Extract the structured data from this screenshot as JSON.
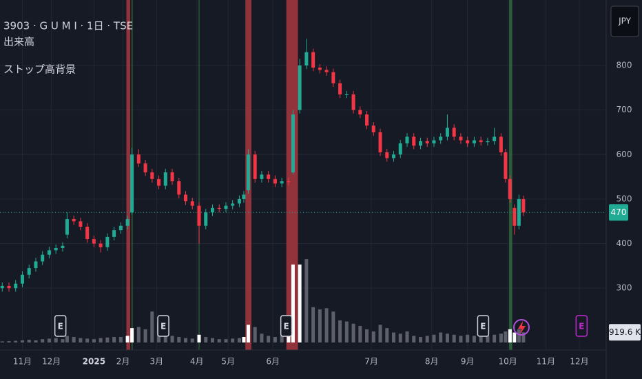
{
  "chart_data": {
    "type": "candlestick",
    "title": "3903 · G U M I · 1日 · TSE",
    "indicators": [
      "出来高",
      "ストップ高背景"
    ],
    "currency": "JPY",
    "x": [
      0,
      3,
      6,
      9,
      12,
      15,
      18,
      21,
      24,
      27,
      29,
      32,
      35,
      38,
      41,
      44,
      47,
      50,
      53,
      56,
      58,
      61,
      64,
      67,
      70,
      73,
      76,
      79,
      82,
      85,
      88,
      91,
      94,
      97,
      100,
      103,
      106,
      108,
      110,
      113,
      116,
      119,
      122,
      125,
      128,
      130,
      133,
      136,
      139,
      142,
      145,
      148,
      151,
      154,
      157,
      160,
      163,
      166,
      169,
      172,
      175,
      178,
      181,
      184,
      187,
      190,
      193,
      196,
      199,
      202,
      205,
      208,
      211,
      214,
      217,
      220,
      223,
      225,
      227,
      229,
      231,
      233
    ],
    "open": [
      300,
      305,
      300,
      310,
      330,
      345,
      360,
      375,
      385,
      390,
      420,
      455,
      450,
      438,
      410,
      400,
      392,
      415,
      430,
      440,
      470,
      600,
      580,
      560,
      545,
      530,
      560,
      540,
      510,
      495,
      485,
      440,
      470,
      480,
      478,
      485,
      490,
      500,
      520,
      600,
      545,
      555,
      545,
      535,
      540,
      560,
      700,
      800,
      830,
      795,
      790,
      785,
      760,
      735,
      735,
      700,
      690,
      665,
      650,
      605,
      592,
      600,
      625,
      640,
      620,
      630,
      625,
      632,
      640,
      660,
      640,
      632,
      625,
      632,
      628,
      630,
      640,
      605,
      545,
      480,
      440,
      500
    ],
    "high": [
      313,
      313,
      318,
      338,
      353,
      368,
      383,
      393,
      398,
      403,
      470,
      463,
      458,
      446,
      418,
      408,
      423,
      438,
      448,
      463,
      615,
      612,
      588,
      568,
      553,
      568,
      568,
      548,
      518,
      503,
      493,
      478,
      488,
      488,
      493,
      498,
      508,
      518,
      612,
      608,
      563,
      563,
      553,
      548,
      548,
      700,
      815,
      860,
      838,
      803,
      798,
      793,
      768,
      743,
      743,
      708,
      698,
      673,
      658,
      613,
      608,
      633,
      648,
      648,
      638,
      638,
      640,
      648,
      690,
      668,
      648,
      640,
      640,
      640,
      638,
      660,
      648,
      613,
      553,
      488,
      510,
      508
    ],
    "low": [
      292,
      292,
      292,
      302,
      322,
      337,
      352,
      367,
      377,
      382,
      412,
      442,
      430,
      402,
      392,
      380,
      384,
      407,
      422,
      432,
      465,
      572,
      552,
      537,
      522,
      522,
      532,
      502,
      487,
      477,
      400,
      432,
      462,
      470,
      470,
      477,
      482,
      492,
      512,
      537,
      537,
      537,
      527,
      527,
      530,
      555,
      692,
      792,
      787,
      782,
      777,
      752,
      727,
      727,
      692,
      682,
      657,
      642,
      597,
      584,
      584,
      592,
      617,
      612,
      612,
      617,
      617,
      624,
      632,
      632,
      624,
      617,
      617,
      620,
      620,
      622,
      597,
      537,
      492,
      420,
      432,
      462
    ],
    "close": [
      305,
      300,
      310,
      330,
      345,
      360,
      375,
      385,
      390,
      395,
      455,
      450,
      438,
      410,
      400,
      392,
      415,
      430,
      440,
      455,
      600,
      580,
      560,
      545,
      530,
      560,
      540,
      510,
      495,
      485,
      440,
      470,
      480,
      478,
      485,
      490,
      500,
      510,
      600,
      545,
      555,
      545,
      535,
      540,
      538,
      690,
      800,
      830,
      795,
      790,
      785,
      760,
      735,
      735,
      700,
      690,
      665,
      650,
      605,
      592,
      600,
      625,
      640,
      620,
      630,
      625,
      632,
      640,
      660,
      640,
      632,
      625,
      632,
      628,
      630,
      640,
      605,
      545,
      500,
      440,
      500,
      470
    ],
    "volume": [
      100,
      120,
      150,
      200,
      250,
      200,
      300,
      350,
      400,
      300,
      600,
      500,
      400,
      350,
      300,
      400,
      450,
      500,
      500,
      600,
      1300,
      1400,
      1200,
      2800,
      1800,
      900,
      600,
      500,
      400,
      350,
      700,
      500,
      400,
      300,
      300,
      350,
      400,
      500,
      1600,
      1400,
      800,
      600,
      500,
      600,
      700,
      7060,
      7060,
      7540,
      3200,
      3000,
      3100,
      2800,
      2000,
      1900,
      1700,
      1500,
      1200,
      1000,
      1600,
      1300,
      900,
      800,
      1000,
      600,
      500,
      600,
      700,
      900,
      800,
      700,
      600,
      700,
      600,
      500,
      600,
      700,
      800,
      1000,
      1200,
      900,
      1200,
      919.6
    ],
    "last_volume_label": "919.6 K",
    "up_color": "#22ab94",
    "down_color": "#f23645",
    "volume_color": "#5d606b",
    "stop_high_volume_color": "#ffffff",
    "bands": [
      {
        "x0": 55.5,
        "x1": 57.2,
        "color": "#a8373f"
      },
      {
        "x0": 57.8,
        "x1": 58.3,
        "color": "#2f6b3c"
      },
      {
        "x0": 87.8,
        "x1": 88.2,
        "color": "#2f6b3c"
      },
      {
        "x0": 108.7,
        "x1": 111.4,
        "color": "#a8373f"
      },
      {
        "x0": 127,
        "x1": 132.2,
        "color": "#a8373f"
      },
      {
        "x0": 226.6,
        "x1": 228,
        "color": "#2f6b3c"
      }
    ],
    "events": [
      {
        "x": 26,
        "label": "E"
      },
      {
        "x": 72,
        "label": "E"
      },
      {
        "x": 127,
        "label": "E"
      },
      {
        "x": 215,
        "label": "E"
      }
    ],
    "future_events": [
      {
        "x": 259,
        "label": "E"
      }
    ],
    "last_price": 470,
    "xlim": [
      -1,
      270
    ],
    "ylim": [
      161,
      947
    ],
    "vlim": [
      0,
      31000
    ],
    "yticks": [
      300,
      400,
      500,
      600,
      700,
      800
    ],
    "xticks": [
      {
        "value": 9,
        "label": "11月"
      },
      {
        "value": 22,
        "label": "12月"
      },
      {
        "value": 41,
        "label": "2025"
      },
      {
        "value": 54,
        "label": "2月"
      },
      {
        "value": 69,
        "label": "3月"
      },
      {
        "value": 87,
        "label": "4月"
      },
      {
        "value": 101,
        "label": "5月"
      },
      {
        "value": 121,
        "label": "6月"
      },
      {
        "value": 165,
        "label": "7月"
      },
      {
        "value": 192,
        "label": "8月"
      },
      {
        "value": 208,
        "label": "9月"
      },
      {
        "value": 226,
        "label": "10月"
      },
      {
        "value": 243,
        "label": "11月"
      },
      {
        "value": 258,
        "label": "12月"
      }
    ],
    "grid": true
  }
}
